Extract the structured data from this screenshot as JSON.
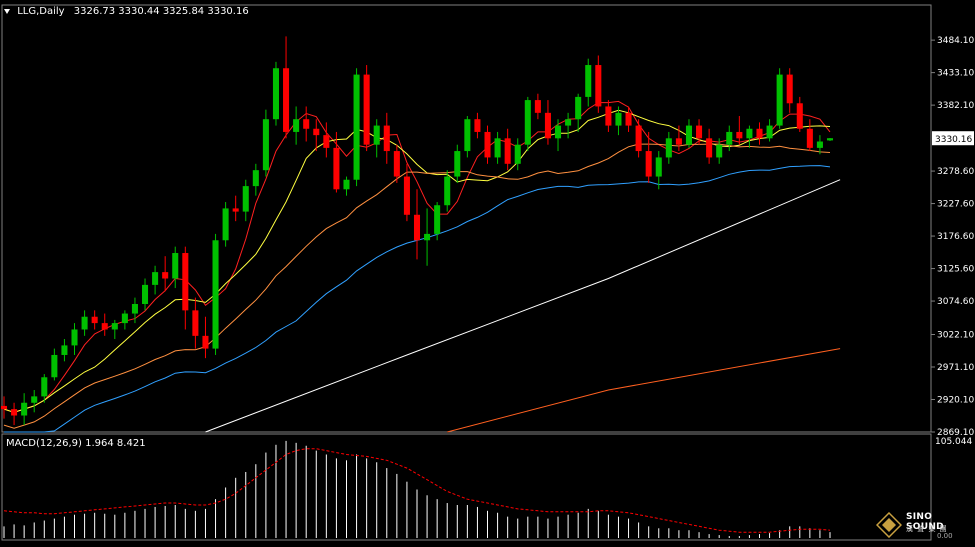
{
  "header": {
    "symbol_timeframe": "LLG,Daily",
    "ohlc": "3326.73 3330.44 3325.84 3330.16"
  },
  "macd": {
    "label": "MACD(12,26,9) 1.964 8.421",
    "axis_top": "105.044",
    "axis_bottom": "0.00"
  },
  "price_axis": {
    "ticks": [
      "3484.10",
      "3433.10",
      "3382.10",
      "3330.16",
      "3278.60",
      "3227.60",
      "3176.60",
      "3125.60",
      "3074.60",
      "3022.10",
      "2971.10",
      "2920.10",
      "2869.10"
    ],
    "current_price": "3330.16"
  },
  "logo": {
    "brand": "SINO SOUND",
    "brand_cn": "漢 聲 集 團"
  },
  "colors": {
    "background": "#000000",
    "bull_candle": "#00c000",
    "bear_candle": "#ff0000",
    "ma5": "#ff2020",
    "ma10": "#ffff40",
    "ma20": "#ff9040",
    "ma30": "#30a0ff",
    "ma60": "#ffffff",
    "ma120": "#ff6020",
    "macd_hist": "#ffffff",
    "macd_signal": "#ff0000"
  },
  "chart_data": {
    "type": "candlestick",
    "title": "LLG,Daily",
    "ylim": [
      2869.1,
      3500
    ],
    "candles": [
      [
        2910,
        2925,
        2890,
        2905
      ],
      [
        2905,
        2915,
        2880,
        2895
      ],
      [
        2895,
        2930,
        2880,
        2915
      ],
      [
        2915,
        2935,
        2900,
        2925
      ],
      [
        2925,
        2960,
        2915,
        2955
      ],
      [
        2955,
        3000,
        2950,
        2990
      ],
      [
        2990,
        3015,
        2980,
        3005
      ],
      [
        3005,
        3040,
        2990,
        3030
      ],
      [
        3030,
        3060,
        3020,
        3050
      ],
      [
        3050,
        3060,
        3030,
        3040
      ],
      [
        3040,
        3055,
        3020,
        3030
      ],
      [
        3030,
        3045,
        3015,
        3040
      ],
      [
        3040,
        3060,
        3030,
        3055
      ],
      [
        3055,
        3080,
        3040,
        3070
      ],
      [
        3070,
        3110,
        3060,
        3100
      ],
      [
        3100,
        3130,
        3085,
        3120
      ],
      [
        3120,
        3145,
        3090,
        3110
      ],
      [
        3110,
        3160,
        3095,
        3150
      ],
      [
        3150,
        3160,
        3030,
        3060
      ],
      [
        3060,
        3080,
        3000,
        3020
      ],
      [
        3020,
        3050,
        2985,
        3000
      ],
      [
        3000,
        3180,
        2990,
        3170
      ],
      [
        3170,
        3230,
        3160,
        3220
      ],
      [
        3220,
        3240,
        3200,
        3215
      ],
      [
        3215,
        3265,
        3200,
        3255
      ],
      [
        3255,
        3290,
        3240,
        3280
      ],
      [
        3280,
        3375,
        3270,
        3360
      ],
      [
        3360,
        3450,
        3350,
        3440
      ],
      [
        3440,
        3490,
        3330,
        3340
      ],
      [
        3340,
        3380,
        3320,
        3360
      ],
      [
        3360,
        3380,
        3325,
        3345
      ],
      [
        3345,
        3360,
        3310,
        3335
      ],
      [
        3335,
        3355,
        3300,
        3315
      ],
      [
        3315,
        3340,
        3245,
        3250
      ],
      [
        3250,
        3270,
        3240,
        3265
      ],
      [
        3265,
        3440,
        3255,
        3430
      ],
      [
        3430,
        3445,
        3310,
        3320
      ],
      [
        3320,
        3360,
        3300,
        3350
      ],
      [
        3350,
        3370,
        3290,
        3310
      ],
      [
        3310,
        3320,
        3260,
        3270
      ],
      [
        3270,
        3290,
        3200,
        3210
      ],
      [
        3210,
        3250,
        3140,
        3170
      ],
      [
        3170,
        3220,
        3130,
        3180
      ],
      [
        3180,
        3230,
        3170,
        3225
      ],
      [
        3225,
        3280,
        3215,
        3270
      ],
      [
        3270,
        3320,
        3260,
        3310
      ],
      [
        3310,
        3365,
        3300,
        3360
      ],
      [
        3360,
        3370,
        3330,
        3340
      ],
      [
        3340,
        3350,
        3290,
        3300
      ],
      [
        3300,
        3340,
        3290,
        3330
      ],
      [
        3330,
        3345,
        3280,
        3290
      ],
      [
        3290,
        3330,
        3280,
        3320
      ],
      [
        3320,
        3395,
        3310,
        3390
      ],
      [
        3390,
        3400,
        3360,
        3370
      ],
      [
        3370,
        3390,
        3320,
        3330
      ],
      [
        3330,
        3360,
        3310,
        3350
      ],
      [
        3350,
        3370,
        3330,
        3360
      ],
      [
        3360,
        3400,
        3340,
        3395
      ],
      [
        3395,
        3455,
        3380,
        3445
      ],
      [
        3445,
        3460,
        3370,
        3380
      ],
      [
        3380,
        3390,
        3340,
        3350
      ],
      [
        3350,
        3380,
        3335,
        3370
      ],
      [
        3370,
        3380,
        3340,
        3350
      ],
      [
        3350,
        3360,
        3300,
        3310
      ],
      [
        3310,
        3340,
        3260,
        3270
      ],
      [
        3270,
        3310,
        3250,
        3300
      ],
      [
        3300,
        3340,
        3290,
        3330
      ],
      [
        3330,
        3350,
        3310,
        3320
      ],
      [
        3320,
        3360,
        3315,
        3350
      ],
      [
        3350,
        3360,
        3320,
        3330
      ],
      [
        3330,
        3345,
        3290,
        3300
      ],
      [
        3300,
        3330,
        3290,
        3320
      ],
      [
        3320,
        3350,
        3310,
        3340
      ],
      [
        3340,
        3365,
        3320,
        3330
      ],
      [
        3330,
        3350,
        3315,
        3345
      ],
      [
        3345,
        3355,
        3320,
        3330
      ],
      [
        3330,
        3360,
        3325,
        3350
      ],
      [
        3350,
        3440,
        3345,
        3430
      ],
      [
        3430,
        3440,
        3370,
        3385
      ],
      [
        3385,
        3395,
        3340,
        3345
      ],
      [
        3345,
        3360,
        3310,
        3315
      ],
      [
        3315,
        3335,
        3305,
        3325
      ],
      [
        3326.73,
        3330.44,
        3325.84,
        3330.16
      ]
    ],
    "ma_lines": [
      {
        "key": "ma5",
        "color_key": "ma5"
      },
      {
        "key": "ma10",
        "color_key": "ma10"
      },
      {
        "key": "ma20",
        "color_key": "ma20"
      },
      {
        "key": "ma30",
        "color_key": "ma30"
      }
    ],
    "ma60": {
      "start": [
        20,
        2869.1
      ],
      "points": [
        [
          20,
          2869.1
        ],
        [
          40,
          2990
        ],
        [
          60,
          3110
        ],
        [
          83,
          3265
        ]
      ]
    },
    "ma120": {
      "points": [
        [
          44,
          2869.1
        ],
        [
          60,
          2935
        ],
        [
          83,
          3000
        ]
      ]
    },
    "macd_hist": [
      12,
      14,
      13,
      16,
      18,
      20,
      22,
      24,
      25,
      26,
      25,
      24,
      26,
      28,
      30,
      32,
      33,
      34,
      30,
      28,
      30,
      40,
      52,
      62,
      68,
      76,
      88,
      96,
      100,
      98,
      95,
      90,
      86,
      82,
      80,
      86,
      82,
      78,
      72,
      66,
      58,
      50,
      44,
      40,
      36,
      34,
      34,
      32,
      28,
      26,
      22,
      20,
      22,
      22,
      20,
      22,
      24,
      26,
      30,
      28,
      24,
      22,
      20,
      16,
      12,
      10,
      10,
      8,
      8,
      6,
      4,
      3,
      2,
      2,
      3,
      4,
      5,
      8,
      12,
      12,
      10,
      8,
      6
    ],
    "macd_signal": [
      28,
      27,
      26,
      26,
      25,
      25,
      26,
      27,
      28,
      29,
      30,
      31,
      32,
      33,
      34,
      35,
      36,
      36,
      35,
      34,
      34,
      36,
      40,
      46,
      54,
      62,
      70,
      78,
      86,
      90,
      92,
      92,
      90,
      88,
      86,
      85,
      84,
      82,
      80,
      76,
      72,
      66,
      60,
      54,
      48,
      44,
      40,
      38,
      36,
      34,
      32,
      30,
      29,
      28,
      27,
      27,
      27,
      27,
      27,
      28,
      28,
      27,
      26,
      24,
      22,
      20,
      18,
      16,
      14,
      12,
      10,
      8,
      7,
      6,
      6,
      6,
      6,
      7,
      8,
      9,
      9,
      9,
      8
    ]
  }
}
